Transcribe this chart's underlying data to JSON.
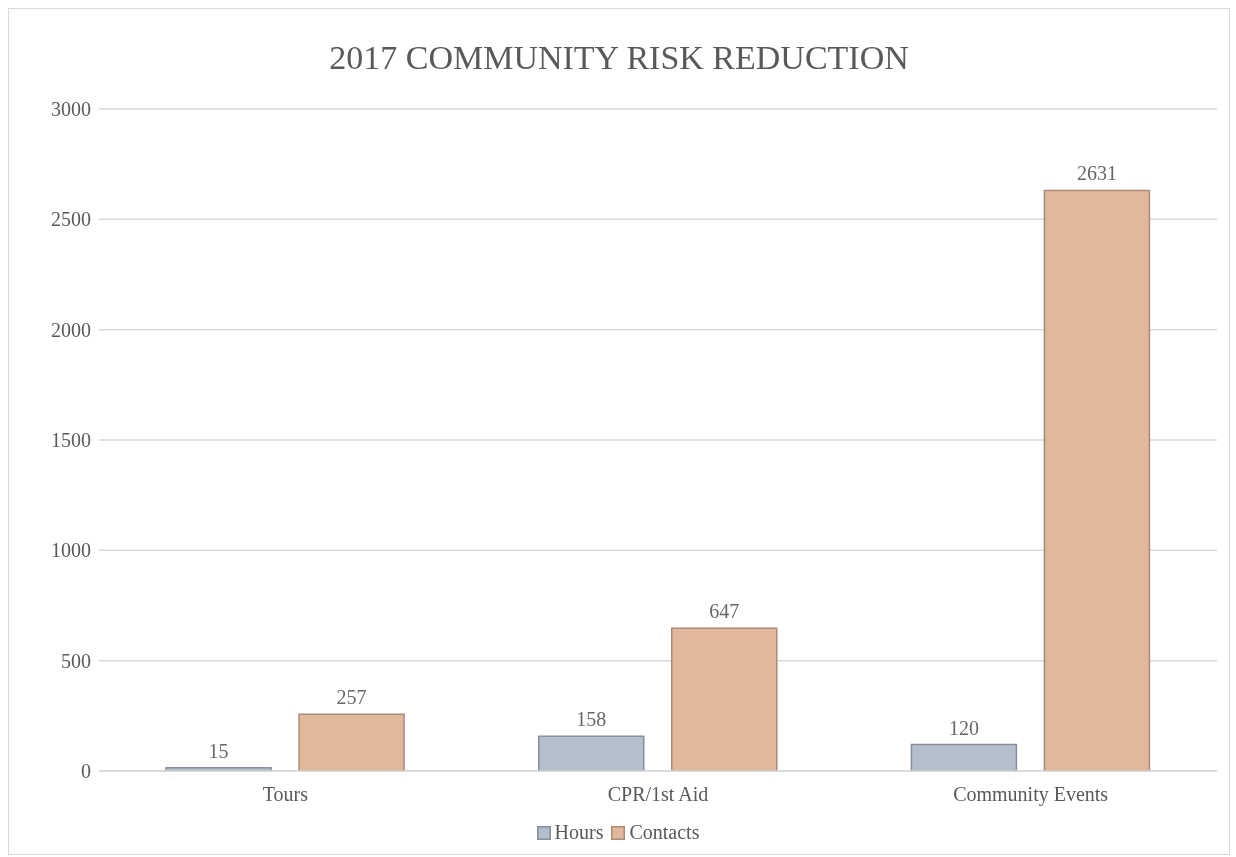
{
  "chart_data": {
    "type": "bar",
    "title": "2017 COMMUNITY RISK REDUCTION",
    "categories": [
      "Tours",
      "CPR/1st Aid",
      "Community Events"
    ],
    "series": [
      {
        "name": "Hours",
        "color": "#b3bfcd",
        "values": [
          15,
          158,
          120
        ]
      },
      {
        "name": "Contacts",
        "color": "#e2b89c",
        "values": [
          257,
          647,
          2631
        ]
      }
    ],
    "ylim": [
      0,
      3000
    ],
    "yticks": [
      0,
      500,
      1000,
      1500,
      2000,
      2500,
      3000
    ],
    "grid": "y",
    "legend": "bottom",
    "data_labels": true
  }
}
